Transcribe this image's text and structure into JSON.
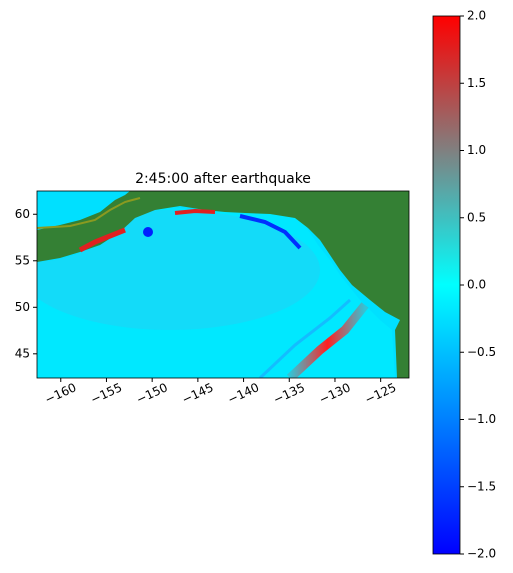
{
  "chart_data": {
    "type": "heatmap_map",
    "title": "2:45:00 after earthquake",
    "xlim": [
      -162.6,
      -121.9
    ],
    "ylim": [
      42.4,
      62.5
    ],
    "xticks": [
      {
        "value": -160,
        "label": "−160"
      },
      {
        "value": -155,
        "label": "−155"
      },
      {
        "value": -150,
        "label": "−150"
      },
      {
        "value": -145,
        "label": "−145"
      },
      {
        "value": -140,
        "label": "−140"
      },
      {
        "value": -135,
        "label": "−135"
      },
      {
        "value": -130,
        "label": "−130"
      },
      {
        "value": -125,
        "label": "−125"
      }
    ],
    "yticks": [
      45,
      50,
      55,
      60
    ],
    "colorbar": {
      "clim": [
        -2,
        2
      ],
      "colors": [
        "#0000ff",
        "#0080ff",
        "#00ffff",
        "#808080",
        "#ff0000"
      ],
      "ticks": [
        {
          "value": 2,
          "label": "2.0"
        },
        1.5,
        {
          "value": 1,
          "label": "1.0"
        },
        0.5,
        {
          "value": 0,
          "label": "0.0"
        },
        {
          "value": -0.5,
          "label": "−0.5"
        },
        {
          "value": -1,
          "label": "−1.0"
        },
        {
          "value": -1.5,
          "label": "−1.5"
        },
        {
          "value": -2,
          "label": "−2.0"
        }
      ]
    }
  }
}
